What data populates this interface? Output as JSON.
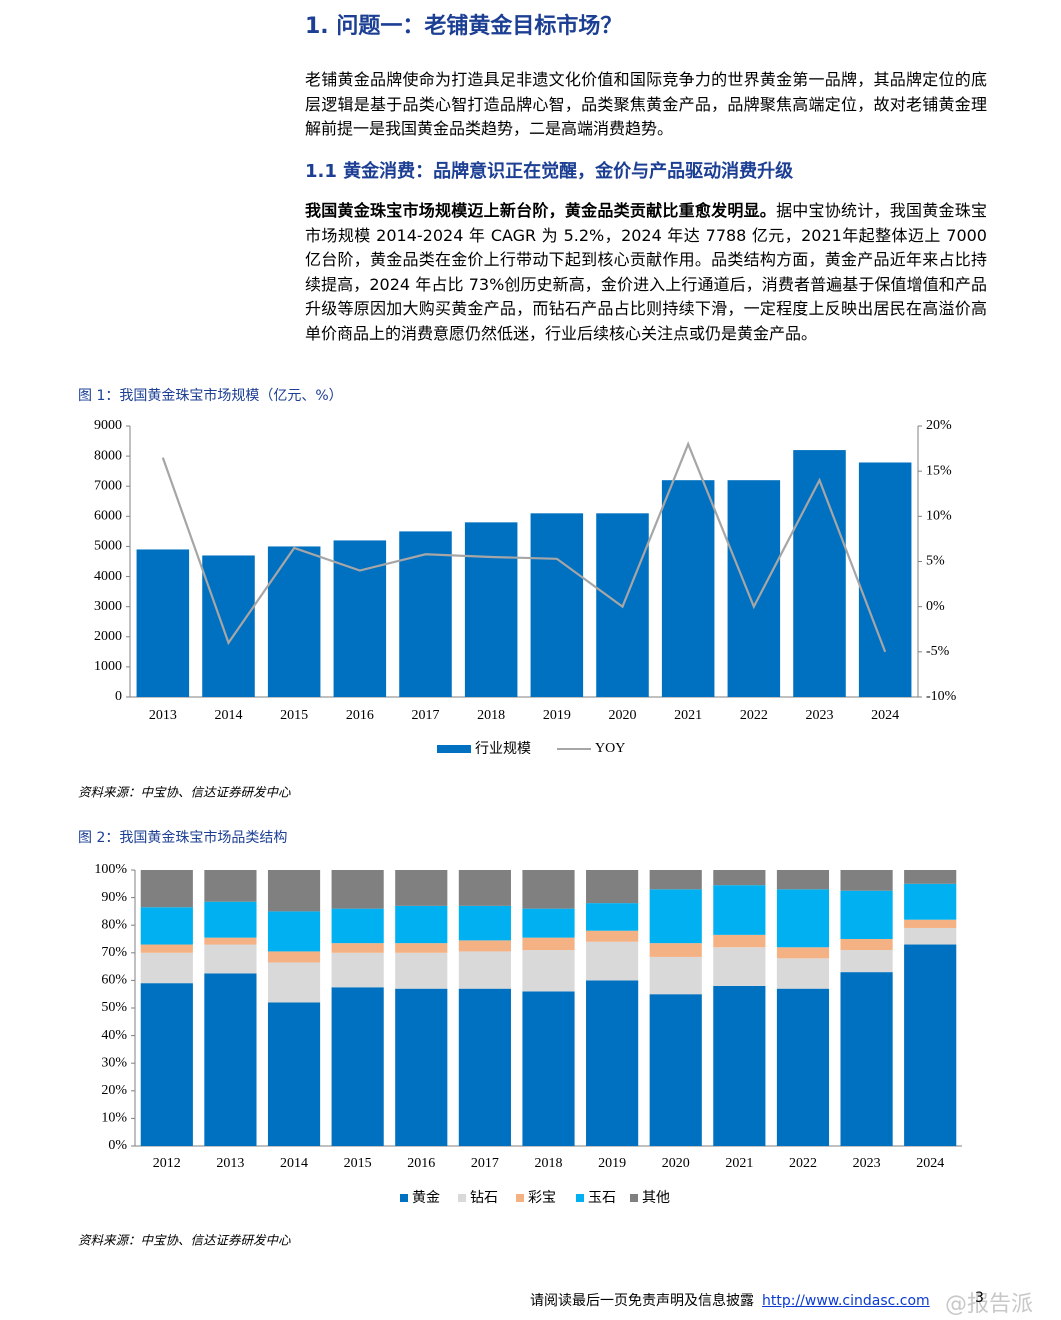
{
  "heading": "1. 问题一：老铺黄金目标市场？",
  "paragraph1": "老铺黄金品牌使命为打造具足非遗文化价值和国际竞争力的世界黄金第一品牌，其品牌定位的底层逻辑是基于品类心智打造品牌心智，品类聚焦黄金产品，品牌聚焦高端定位，故对老铺黄金理解前提一是我国黄金品类趋势，二是高端消费趋势。",
  "subheading": "1.1 黄金消费：品牌意识正在觉醒，金价与产品驱动消费升级",
  "paragraph2": {
    "lead": "我国黄金珠宝市场规模迈上新台阶，黄金品类贡献比重愈发明显。",
    "text": "据中宝协统计，我国黄金珠宝市场规模 2014-2024 年 CAGR 为 5.2%，2024 年达 7788 亿元，2021年起整体迈上 7000 亿台阶，黄金品类在金价上行带动下起到核心贡献作用。品类结构方面，黄金产品近年来占比持续提高，2024 年占比 73%创历史新高，金价进入上行通道后，消费者普遍基于保值增值和产品升级等原因加大购买黄金产品，而钻石产品占比则持续下滑，一定程度上反映出居民在高溢价高单价商品上的消费意愿仍然低迷，行业后续核心关注点或仍是黄金产品。"
  },
  "chart_data": [
    {
      "type": "bar",
      "title": "图 1：我国黄金珠宝市场规模（亿元、%）",
      "source": "资料来源：中宝协、信达证券研发中心",
      "categories": [
        "2013",
        "2014",
        "2015",
        "2016",
        "2017",
        "2018",
        "2019",
        "2020",
        "2021",
        "2022",
        "2023",
        "2024"
      ],
      "series": [
        {
          "name": "行业规模",
          "type": "bar",
          "color": "#0070c0",
          "values": [
            4900,
            4700,
            5000,
            5200,
            5500,
            5800,
            6100,
            6100,
            7200,
            7200,
            8200,
            7788
          ]
        },
        {
          "name": "YOY",
          "type": "line",
          "axis": "y2",
          "color": "#a6a6a6",
          "values": [
            16.5,
            -4,
            6.5,
            4,
            5.8,
            5.5,
            5.3,
            0,
            18,
            0,
            14,
            -5
          ]
        }
      ],
      "ylim": [
        0,
        9000
      ],
      "yticks": [
        0,
        1000,
        2000,
        3000,
        4000,
        5000,
        6000,
        7000,
        8000,
        9000
      ],
      "y2lim": [
        -10,
        20
      ],
      "y2ticks": [
        {
          "value": -10,
          "label": "-10%"
        },
        {
          "value": -5,
          "label": "-5%"
        },
        {
          "value": 0,
          "label": "0%"
        },
        {
          "value": 5,
          "label": "5%"
        },
        {
          "value": 10,
          "label": "10%"
        },
        {
          "value": 15,
          "label": "15%"
        },
        {
          "value": 20,
          "label": "20%"
        }
      ],
      "grid": false,
      "legend": "bottom"
    },
    {
      "type": "stacked_bar",
      "title": "图 2：我国黄金珠宝市场品类结构",
      "source": "资料来源：中宝协、信达证券研发中心",
      "categories": [
        "2012",
        "2013",
        "2014",
        "2015",
        "2016",
        "2017",
        "2018",
        "2019",
        "2020",
        "2021",
        "2022",
        "2023",
        "2024"
      ],
      "series": [
        {
          "name": "黄金",
          "color": "#0070c0",
          "values": [
            59,
            62.5,
            52,
            57.5,
            57,
            57,
            56,
            60,
            55,
            58,
            57,
            63,
            73
          ]
        },
        {
          "name": "钻石",
          "color": "#d9d9d9",
          "values": [
            11,
            10.5,
            14.5,
            12.5,
            13,
            13.5,
            15,
            14,
            13.5,
            14,
            11,
            8,
            6
          ]
        },
        {
          "name": "彩宝",
          "color": "#f4b183",
          "values": [
            3,
            2.5,
            4,
            3.5,
            3.5,
            4,
            4.5,
            4,
            5,
            4.5,
            4,
            4,
            3
          ]
        },
        {
          "name": "玉石",
          "color": "#00b0f0",
          "values": [
            13.5,
            13,
            14.5,
            12.5,
            13.5,
            12.5,
            10.5,
            10,
            19.5,
            18,
            21,
            17.5,
            13
          ]
        },
        {
          "name": "其他",
          "color": "#808080",
          "values": [
            13.5,
            11.5,
            15,
            14,
            13,
            13,
            14,
            12,
            7,
            5.5,
            7,
            7.5,
            5
          ]
        }
      ],
      "ylim": [
        0,
        100
      ],
      "yticks": [
        {
          "value": 0,
          "label": "0%"
        },
        {
          "value": 10,
          "label": "10%"
        },
        {
          "value": 20,
          "label": "20%"
        },
        {
          "value": 30,
          "label": "30%"
        },
        {
          "value": 40,
          "label": "40%"
        },
        {
          "value": 50,
          "label": "50%"
        },
        {
          "value": 60,
          "label": "60%"
        },
        {
          "value": 70,
          "label": "70%"
        },
        {
          "value": 80,
          "label": "80%"
        },
        {
          "value": 90,
          "label": "90%"
        },
        {
          "value": 100,
          "label": "100%"
        }
      ],
      "grid": false,
      "legend": "bottom"
    }
  ],
  "footer": {
    "disclaimer": "请阅读最后一页免责声明及信息披露",
    "url": "http://www.cindasc.com",
    "page": "3",
    "watermark": "@报告派"
  }
}
